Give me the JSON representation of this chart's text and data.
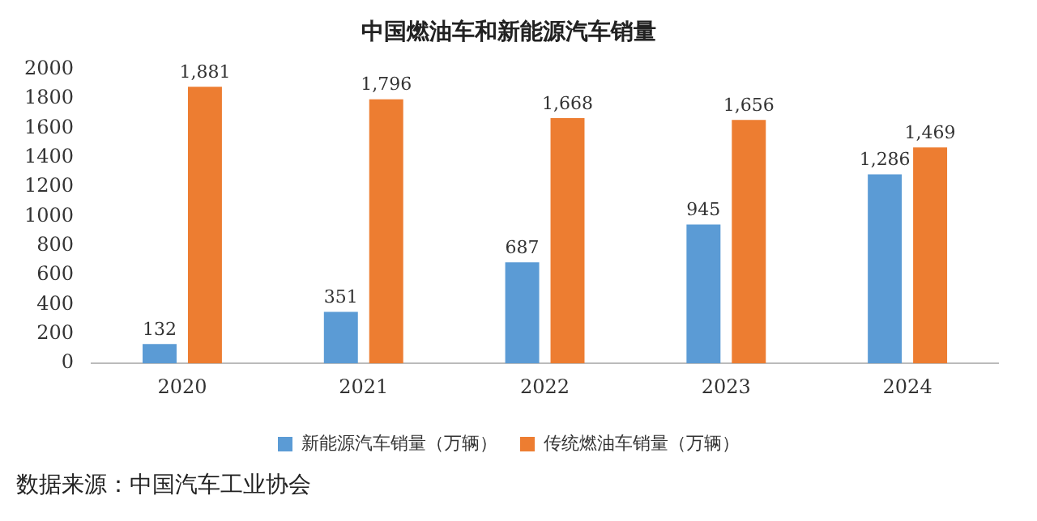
{
  "chart_data": {
    "type": "bar",
    "title": "中国燃油车和新能源汽车销量",
    "categories": [
      "2020",
      "2021",
      "2022",
      "2023",
      "2024"
    ],
    "series": [
      {
        "name": "新能源汽车销量（万辆）",
        "color": "#5b9bd5",
        "values": [
          132,
          351,
          687,
          945,
          1286
        ],
        "value_labels": [
          "132",
          "351",
          "687",
          "945",
          "1,286"
        ]
      },
      {
        "name": "传统燃油车销量（万辆）",
        "color": "#ed7d31",
        "values": [
          1881,
          1796,
          1668,
          1656,
          1469
        ],
        "value_labels": [
          "1,881",
          "1,796",
          "1,668",
          "1,656",
          "1,469"
        ]
      }
    ],
    "ylim": [
      0,
      2000
    ],
    "yticks": [
      0,
      200,
      400,
      600,
      800,
      1000,
      1200,
      1400,
      1600,
      1800,
      2000
    ],
    "grid": false,
    "legend": "bottom",
    "annotations": [
      "数据来源：中国汽车工业协会"
    ]
  }
}
